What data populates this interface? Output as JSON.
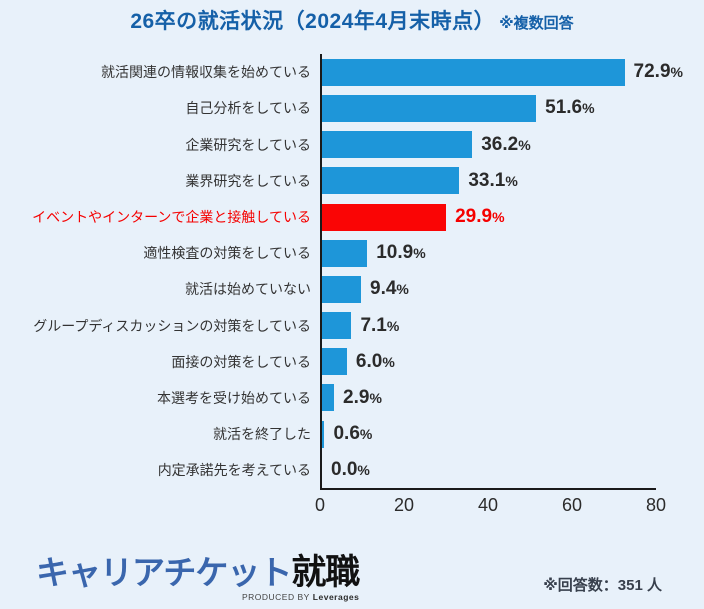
{
  "title": {
    "main": "26卒の就活状況（2024年4月末時点）",
    "note": "※複数回答"
  },
  "chart_data": {
    "type": "bar",
    "orientation": "horizontal",
    "title": "26卒の就活状況（2024年4月末時点）※複数回答",
    "categories": [
      "就活関連の情報収集を始めている",
      "自己分析をしている",
      "企業研究をしている",
      "業界研究をしている",
      "イベントやインターンで企業と接触している",
      "適性検査の対策をしている",
      "就活は始めていない",
      "グループディスカッションの対策をしている",
      "面接の対策をしている",
      "本選考を受け始めている",
      "就活を終了した",
      "内定承諾先を考えている"
    ],
    "values": [
      72.9,
      51.6,
      36.2,
      33.1,
      29.9,
      10.9,
      9.4,
      7.1,
      6.0,
      2.9,
      0.6,
      0.0
    ],
    "value_labels": [
      "72.9",
      "51.6",
      "36.2",
      "33.1",
      "29.9",
      "10.9",
      "9.4",
      "7.1",
      "6.0",
      "2.9",
      "0.6",
      "0.0"
    ],
    "percent_suffix": "%",
    "highlight_index": 4,
    "xlabel": "",
    "ylabel": "",
    "xlim": [
      0,
      80
    ],
    "x_tick_labels": [
      "0",
      "20",
      "40",
      "60",
      "80"
    ],
    "x_tick_values": [
      0,
      20,
      40,
      60,
      80
    ],
    "grid": false,
    "legend": false,
    "colors": {
      "background": "#E8F1FA",
      "title": "#1560A8",
      "bar": "#1E96D9",
      "highlight_bar": "#FA0505",
      "category_label": "#333333",
      "highlight_label": "#F50000",
      "value_label": "#2B2B2B",
      "axis": "#1A1A1A"
    }
  },
  "footer": {
    "logo_brand": "キャリアチケット",
    "logo_suffix": "就職",
    "logo_produced_by": "PRODUCED BY",
    "logo_company": "Leverages",
    "respondents_note": "※回答数：351 人",
    "colors": {
      "logo_brand": "#3A66AD",
      "logo_suffix": "#111111",
      "note": "#38404D"
    }
  }
}
